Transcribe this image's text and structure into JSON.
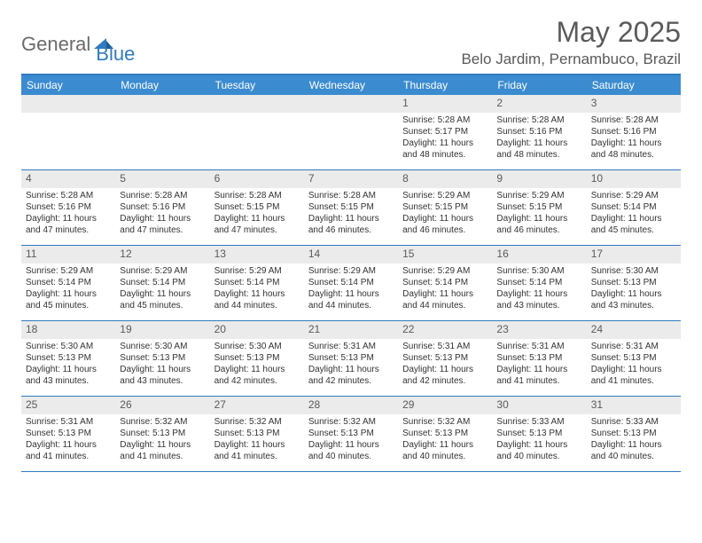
{
  "logo": {
    "part1": "General",
    "part2": "Blue"
  },
  "title": "May 2025",
  "location": "Belo Jardim, Pernambuco, Brazil",
  "colors": {
    "header_bg": "#3b8bd0",
    "border": "#2f7bbf",
    "daynum_bg": "#ebebeb",
    "text": "#333333",
    "title_text": "#5a5a5a"
  },
  "weekdays": [
    "Sunday",
    "Monday",
    "Tuesday",
    "Wednesday",
    "Thursday",
    "Friday",
    "Saturday"
  ],
  "weeks": [
    [
      null,
      null,
      null,
      null,
      {
        "n": "1",
        "sr": "5:28 AM",
        "ss": "5:17 PM",
        "dl": "11 hours and 48 minutes."
      },
      {
        "n": "2",
        "sr": "5:28 AM",
        "ss": "5:16 PM",
        "dl": "11 hours and 48 minutes."
      },
      {
        "n": "3",
        "sr": "5:28 AM",
        "ss": "5:16 PM",
        "dl": "11 hours and 48 minutes."
      }
    ],
    [
      {
        "n": "4",
        "sr": "5:28 AM",
        "ss": "5:16 PM",
        "dl": "11 hours and 47 minutes."
      },
      {
        "n": "5",
        "sr": "5:28 AM",
        "ss": "5:16 PM",
        "dl": "11 hours and 47 minutes."
      },
      {
        "n": "6",
        "sr": "5:28 AM",
        "ss": "5:15 PM",
        "dl": "11 hours and 47 minutes."
      },
      {
        "n": "7",
        "sr": "5:28 AM",
        "ss": "5:15 PM",
        "dl": "11 hours and 46 minutes."
      },
      {
        "n": "8",
        "sr": "5:29 AM",
        "ss": "5:15 PM",
        "dl": "11 hours and 46 minutes."
      },
      {
        "n": "9",
        "sr": "5:29 AM",
        "ss": "5:15 PM",
        "dl": "11 hours and 46 minutes."
      },
      {
        "n": "10",
        "sr": "5:29 AM",
        "ss": "5:14 PM",
        "dl": "11 hours and 45 minutes."
      }
    ],
    [
      {
        "n": "11",
        "sr": "5:29 AM",
        "ss": "5:14 PM",
        "dl": "11 hours and 45 minutes."
      },
      {
        "n": "12",
        "sr": "5:29 AM",
        "ss": "5:14 PM",
        "dl": "11 hours and 45 minutes."
      },
      {
        "n": "13",
        "sr": "5:29 AM",
        "ss": "5:14 PM",
        "dl": "11 hours and 44 minutes."
      },
      {
        "n": "14",
        "sr": "5:29 AM",
        "ss": "5:14 PM",
        "dl": "11 hours and 44 minutes."
      },
      {
        "n": "15",
        "sr": "5:29 AM",
        "ss": "5:14 PM",
        "dl": "11 hours and 44 minutes."
      },
      {
        "n": "16",
        "sr": "5:30 AM",
        "ss": "5:14 PM",
        "dl": "11 hours and 43 minutes."
      },
      {
        "n": "17",
        "sr": "5:30 AM",
        "ss": "5:13 PM",
        "dl": "11 hours and 43 minutes."
      }
    ],
    [
      {
        "n": "18",
        "sr": "5:30 AM",
        "ss": "5:13 PM",
        "dl": "11 hours and 43 minutes."
      },
      {
        "n": "19",
        "sr": "5:30 AM",
        "ss": "5:13 PM",
        "dl": "11 hours and 43 minutes."
      },
      {
        "n": "20",
        "sr": "5:30 AM",
        "ss": "5:13 PM",
        "dl": "11 hours and 42 minutes."
      },
      {
        "n": "21",
        "sr": "5:31 AM",
        "ss": "5:13 PM",
        "dl": "11 hours and 42 minutes."
      },
      {
        "n": "22",
        "sr": "5:31 AM",
        "ss": "5:13 PM",
        "dl": "11 hours and 42 minutes."
      },
      {
        "n": "23",
        "sr": "5:31 AM",
        "ss": "5:13 PM",
        "dl": "11 hours and 41 minutes."
      },
      {
        "n": "24",
        "sr": "5:31 AM",
        "ss": "5:13 PM",
        "dl": "11 hours and 41 minutes."
      }
    ],
    [
      {
        "n": "25",
        "sr": "5:31 AM",
        "ss": "5:13 PM",
        "dl": "11 hours and 41 minutes."
      },
      {
        "n": "26",
        "sr": "5:32 AM",
        "ss": "5:13 PM",
        "dl": "11 hours and 41 minutes."
      },
      {
        "n": "27",
        "sr": "5:32 AM",
        "ss": "5:13 PM",
        "dl": "11 hours and 41 minutes."
      },
      {
        "n": "28",
        "sr": "5:32 AM",
        "ss": "5:13 PM",
        "dl": "11 hours and 40 minutes."
      },
      {
        "n": "29",
        "sr": "5:32 AM",
        "ss": "5:13 PM",
        "dl": "11 hours and 40 minutes."
      },
      {
        "n": "30",
        "sr": "5:33 AM",
        "ss": "5:13 PM",
        "dl": "11 hours and 40 minutes."
      },
      {
        "n": "31",
        "sr": "5:33 AM",
        "ss": "5:13 PM",
        "dl": "11 hours and 40 minutes."
      }
    ]
  ],
  "labels": {
    "sunrise": "Sunrise:",
    "sunset": "Sunset:",
    "daylight": "Daylight:"
  }
}
